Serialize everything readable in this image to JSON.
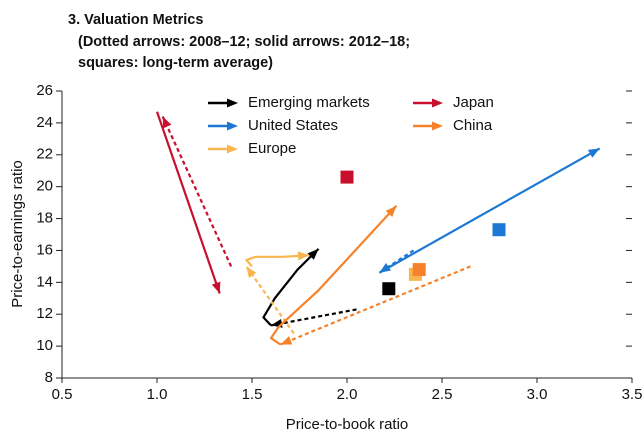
{
  "chart_data": {
    "type": "arrows",
    "title": "3. Valuation Metrics",
    "subtitle": [
      "(Dotted arrows: 2008–12; solid arrows: 2012–18;",
      "squares: long-term average)"
    ],
    "x_label": "Price-to-book ratio",
    "y_label": "Price-to-earnings ratio",
    "xlim": [
      0.5,
      3.5
    ],
    "xticks": [
      0.5,
      {
        "value": 1,
        "label": "1.0"
      },
      1.5,
      {
        "value": 2,
        "label": "2.0"
      },
      2.5,
      {
        "value": 3,
        "label": "3.0"
      },
      3.5
    ],
    "ylim": [
      8,
      26
    ],
    "yticks": [
      8,
      10,
      12,
      14,
      16,
      18,
      20,
      22,
      24,
      26
    ],
    "series": [
      {
        "name": "Emerging markets",
        "color": "#000000",
        "dotted": {
          "x": [
            2.05,
            1.6
          ],
          "y": [
            12.3,
            11.3
          ]
        },
        "solid": {
          "x": [
            1.6,
            1.56,
            1.62,
            1.74,
            1.85
          ],
          "y": [
            11.3,
            11.8,
            13.0,
            14.8,
            16.1
          ]
        },
        "average": {
          "x": 2.22,
          "y": 13.6
        }
      },
      {
        "name": "United States",
        "color": "#1c78d4",
        "dotted": {
          "x": [
            2.35,
            2.17
          ],
          "y": [
            16.0,
            14.6
          ]
        },
        "solid": {
          "x": [
            2.17,
            3.33
          ],
          "y": [
            14.6,
            22.4
          ]
        },
        "average": {
          "x": 2.8,
          "y": 17.3
        }
      },
      {
        "name": "Europe",
        "color": "#f9b650",
        "dotted": {
          "x": [
            1.72,
            1.47
          ],
          "y": [
            10.8,
            15.0
          ]
        },
        "solid": {
          "x": [
            1.5,
            1.47,
            1.52,
            1.66,
            1.8
          ],
          "y": [
            15.0,
            15.4,
            15.6,
            15.6,
            15.7
          ]
        },
        "average": {
          "x": 2.36,
          "y": 14.5
        }
      },
      {
        "name": "Japan",
        "color": "#c8102e",
        "dotted": {
          "x": [
            1.39,
            1.03
          ],
          "y": [
            15.0,
            24.4
          ]
        },
        "solid": {
          "x": [
            1.0,
            1.33
          ],
          "y": [
            24.7,
            13.3
          ]
        },
        "average": {
          "x": 2.0,
          "y": 20.6
        }
      },
      {
        "name": "China",
        "color": "#f5822a",
        "dotted": {
          "x": [
            2.65,
            1.65
          ],
          "y": [
            15.0,
            10.1
          ]
        },
        "solid": {
          "x": [
            1.65,
            1.6,
            1.64,
            1.85,
            2.26
          ],
          "y": [
            10.1,
            10.5,
            11.2,
            13.5,
            18.8
          ]
        },
        "average": {
          "x": 2.38,
          "y": 14.8
        }
      }
    ]
  }
}
